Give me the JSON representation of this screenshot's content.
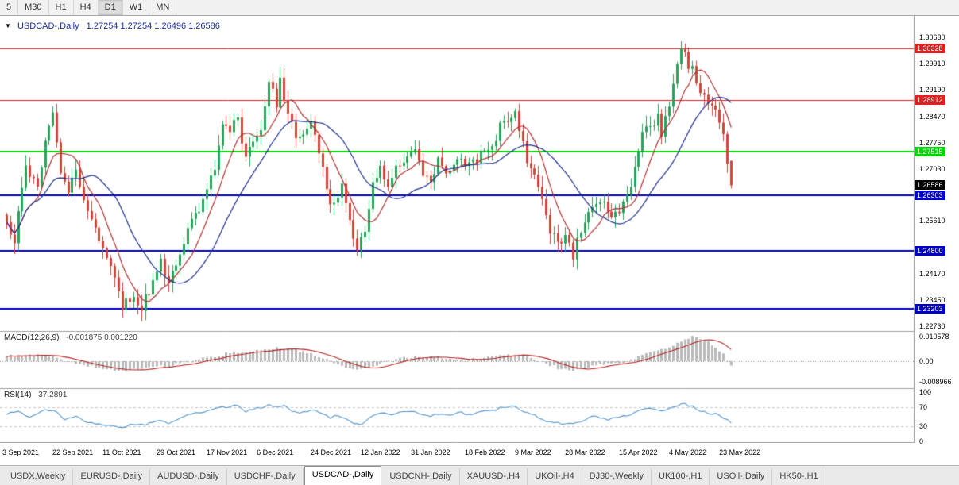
{
  "toolbar": {
    "timeframes": [
      "5",
      "M30",
      "H1",
      "H4",
      "D1",
      "W1",
      "MN"
    ],
    "active_timeframe": "D1"
  },
  "chart_header": {
    "symbol": "USDCAD-,Daily",
    "ohlc": "1.27254 1.27254 1.26496 1.26586"
  },
  "chart_data": {
    "type": "candlestick",
    "title": "USDCAD-,Daily",
    "ohlc_current": {
      "open": 1.27254,
      "high": 1.27254,
      "low": 1.26496,
      "close": 1.26586
    },
    "price_range": {
      "top": 1.3063,
      "bottom": 1.2273
    },
    "y_axis_ticks": [
      "1.30630",
      "1.29910",
      "1.29190",
      "1.28470",
      "1.27750",
      "1.27030",
      "1.25610",
      "1.24170",
      "1.23450",
      "1.22730"
    ],
    "h_lines": [
      {
        "price": 1.30328,
        "label": "1.30328",
        "color": "#e02020",
        "width": 1
      },
      {
        "price": 1.28912,
        "label": "1.28912",
        "color": "#e02020",
        "width": 1
      },
      {
        "price": 1.27515,
        "label": "1.27515",
        "color": "#00d400",
        "width": 2
      },
      {
        "price": 1.26303,
        "label": "1.26303",
        "color": "#0000c8",
        "width": 2
      },
      {
        "price": 1.248,
        "label": "1.24800",
        "color": "#0000c8",
        "width": 2
      },
      {
        "price": 1.23203,
        "label": "1.23203",
        "color": "#0000c8",
        "width": 2
      }
    ],
    "current_price": {
      "value": 1.26586,
      "label": "1.26586",
      "color": "#000000"
    },
    "num_candles": 189,
    "x_labels": [
      {
        "day": 0,
        "label": "3 Sep 2021"
      },
      {
        "day": 13,
        "label": "22 Sep 2021"
      },
      {
        "day": 26,
        "label": "11 Oct 2021"
      },
      {
        "day": 40,
        "label": "29 Oct 2021"
      },
      {
        "day": 53,
        "label": "17 Nov 2021"
      },
      {
        "day": 66,
        "label": "6 Dec 2021"
      },
      {
        "day": 80,
        "label": "24 Dec 2021"
      },
      {
        "day": 93,
        "label": "12 Jan 2022"
      },
      {
        "day": 106,
        "label": "31 Jan 2022"
      },
      {
        "day": 120,
        "label": "18 Feb 2022"
      },
      {
        "day": 133,
        "label": "9 Mar 2022"
      },
      {
        "day": 146,
        "label": "28 Mar 2022"
      },
      {
        "day": 160,
        "label": "15 Apr 2022"
      },
      {
        "day": 173,
        "label": "4 May 2022"
      },
      {
        "day": 186,
        "label": "23 May 2022"
      }
    ],
    "close_waypoints": [
      [
        0,
        1.2545
      ],
      [
        2,
        1.251
      ],
      [
        5,
        1.27
      ],
      [
        8,
        1.266
      ],
      [
        11,
        1.283
      ],
      [
        12,
        1.2845
      ],
      [
        14,
        1.27
      ],
      [
        16,
        1.265
      ],
      [
        18,
        1.269
      ],
      [
        21,
        1.26
      ],
      [
        24,
        1.252
      ],
      [
        27,
        1.245
      ],
      [
        30,
        1.233
      ],
      [
        33,
        1.236
      ],
      [
        35,
        1.232
      ],
      [
        38,
        1.24
      ],
      [
        40,
        1.245
      ],
      [
        42,
        1.24
      ],
      [
        45,
        1.248
      ],
      [
        48,
        1.256
      ],
      [
        51,
        1.262
      ],
      [
        54,
        1.27
      ],
      [
        56,
        1.282
      ],
      [
        58,
        1.28
      ],
      [
        60,
        1.2845
      ],
      [
        62,
        1.273
      ],
      [
        64,
        1.279
      ],
      [
        66,
        1.281
      ],
      [
        68,
        1.2937
      ],
      [
        70,
        1.288
      ],
      [
        71,
        1.295
      ],
      [
        73,
        1.285
      ],
      [
        75,
        1.28
      ],
      [
        77,
        1.279
      ],
      [
        79,
        1.283
      ],
      [
        81,
        1.275
      ],
      [
        83,
        1.264
      ],
      [
        85,
        1.26
      ],
      [
        87,
        1.266
      ],
      [
        89,
        1.256
      ],
      [
        91,
        1.248
      ],
      [
        93,
        1.2535
      ],
      [
        95,
        1.2666
      ],
      [
        97,
        1.27
      ],
      [
        99,
        1.266
      ],
      [
        101,
        1.271
      ],
      [
        103,
        1.2722
      ],
      [
        105,
        1.276
      ],
      [
        106,
        1.2744
      ],
      [
        108,
        1.269
      ],
      [
        110,
        1.267
      ],
      [
        112,
        1.272
      ],
      [
        114,
        1.268
      ],
      [
        116,
        1.271
      ],
      [
        118,
        1.2733
      ],
      [
        120,
        1.2711
      ],
      [
        122,
        1.273
      ],
      [
        124,
        1.275
      ],
      [
        126,
        1.2766
      ],
      [
        128,
        1.282
      ],
      [
        130,
        1.284
      ],
      [
        132,
        1.286
      ],
      [
        133,
        1.2818
      ],
      [
        135,
        1.2733
      ],
      [
        137,
        1.268
      ],
      [
        139,
        1.262
      ],
      [
        141,
        1.254
      ],
      [
        143,
        1.2494
      ],
      [
        145,
        1.252
      ],
      [
        147,
        1.247
      ],
      [
        149,
        1.253
      ],
      [
        151,
        1.258
      ],
      [
        153,
        1.2613
      ],
      [
        155,
        1.2602
      ],
      [
        157,
        1.256
      ],
      [
        159,
        1.259
      ],
      [
        161,
        1.262
      ],
      [
        163,
        1.27
      ],
      [
        165,
        1.279
      ],
      [
        167,
        1.282
      ],
      [
        169,
        1.284
      ],
      [
        170,
        1.2787
      ],
      [
        172,
        1.2885
      ],
      [
        174,
        1.299
      ],
      [
        175,
        1.3034
      ],
      [
        176,
        1.301
      ],
      [
        178,
        1.297
      ],
      [
        180,
        1.2916
      ],
      [
        182,
        1.2886
      ],
      [
        184,
        1.2864
      ],
      [
        186,
        1.2787
      ],
      [
        187,
        1.272
      ],
      [
        188,
        1.26586
      ]
    ],
    "colors": {
      "up": "#28a35c",
      "down": "#d0453c",
      "ma_fast": "#b03030",
      "ma_slow": "#1f2f8f",
      "macd_hist": "#b9b9b9",
      "macd_signal": "#b22222",
      "rsi": "#4f94cd"
    },
    "ma_fast_period": 8,
    "ma_slow_period": 20,
    "macd": {
      "title": "MACD(12,26,9)",
      "values": "-0.001875 0.001220",
      "axis": [
        "0.010578",
        "0.00",
        "-0.008966"
      ],
      "waypoints": [
        [
          0,
          0.002
        ],
        [
          5,
          0.003
        ],
        [
          10,
          0.0025
        ],
        [
          14,
          0.001
        ],
        [
          18,
          -0.001
        ],
        [
          24,
          -0.003
        ],
        [
          30,
          -0.0045
        ],
        [
          36,
          -0.003
        ],
        [
          42,
          -0.002
        ],
        [
          48,
          0.0
        ],
        [
          54,
          0.002
        ],
        [
          58,
          0.0035
        ],
        [
          62,
          0.004
        ],
        [
          66,
          0.0045
        ],
        [
          70,
          0.006
        ],
        [
          73,
          0.0055
        ],
        [
          77,
          0.004
        ],
        [
          81,
          0.002
        ],
        [
          85,
          -0.001
        ],
        [
          89,
          -0.003
        ],
        [
          92,
          -0.0035
        ],
        [
          95,
          -0.002
        ],
        [
          99,
          0.0
        ],
        [
          103,
          0.0015
        ],
        [
          107,
          0.002
        ],
        [
          111,
          0.0015
        ],
        [
          115,
          0.001
        ],
        [
          119,
          0.0005
        ],
        [
          123,
          0.001
        ],
        [
          127,
          0.002
        ],
        [
          131,
          0.003
        ],
        [
          134,
          0.0025
        ],
        [
          137,
          0.001
        ],
        [
          140,
          -0.001
        ],
        [
          143,
          -0.003
        ],
        [
          146,
          -0.004
        ],
        [
          149,
          -0.0035
        ],
        [
          152,
          -0.002
        ],
        [
          155,
          -0.0015
        ],
        [
          158,
          -0.001
        ],
        [
          161,
          0.0
        ],
        [
          164,
          0.002
        ],
        [
          167,
          0.004
        ],
        [
          170,
          0.005
        ],
        [
          173,
          0.007
        ],
        [
          176,
          0.009
        ],
        [
          178,
          0.0105
        ],
        [
          180,
          0.01
        ],
        [
          182,
          0.008
        ],
        [
          184,
          0.006
        ],
        [
          186,
          0.003
        ],
        [
          188,
          -0.001875
        ]
      ]
    },
    "rsi": {
      "title": "RSI(14)",
      "value": "37.2891",
      "axis": [
        "100",
        "70",
        "30",
        "0"
      ],
      "levels": [
        70,
        30
      ],
      "waypoints": [
        [
          0,
          55
        ],
        [
          3,
          60
        ],
        [
          6,
          50
        ],
        [
          9,
          62
        ],
        [
          12,
          65
        ],
        [
          15,
          45
        ],
        [
          18,
          50
        ],
        [
          21,
          40
        ],
        [
          24,
          35
        ],
        [
          27,
          30
        ],
        [
          30,
          28
        ],
        [
          33,
          35
        ],
        [
          36,
          32
        ],
        [
          39,
          42
        ],
        [
          42,
          38
        ],
        [
          45,
          48
        ],
        [
          48,
          55
        ],
        [
          51,
          58
        ],
        [
          54,
          65
        ],
        [
          57,
          70
        ],
        [
          60,
          72
        ],
        [
          62,
          60
        ],
        [
          64,
          65
        ],
        [
          66,
          68
        ],
        [
          68,
          75
        ],
        [
          70,
          70
        ],
        [
          72,
          72
        ],
        [
          74,
          62
        ],
        [
          76,
          58
        ],
        [
          78,
          62
        ],
        [
          80,
          65
        ],
        [
          82,
          55
        ],
        [
          84,
          48
        ],
        [
          86,
          52
        ],
        [
          88,
          45
        ],
        [
          90,
          38
        ],
        [
          92,
          35
        ],
        [
          94,
          48
        ],
        [
          96,
          55
        ],
        [
          98,
          58
        ],
        [
          100,
          54
        ],
        [
          102,
          58
        ],
        [
          104,
          60
        ],
        [
          106,
          62
        ],
        [
          108,
          54
        ],
        [
          110,
          52
        ],
        [
          112,
          56
        ],
        [
          114,
          52
        ],
        [
          116,
          55
        ],
        [
          118,
          58
        ],
        [
          120,
          55
        ],
        [
          122,
          57
        ],
        [
          124,
          60
        ],
        [
          126,
          62
        ],
        [
          128,
          68
        ],
        [
          130,
          70
        ],
        [
          132,
          72
        ],
        [
          134,
          62
        ],
        [
          136,
          55
        ],
        [
          138,
          48
        ],
        [
          140,
          42
        ],
        [
          142,
          38
        ],
        [
          144,
          35
        ],
        [
          146,
          38
        ],
        [
          148,
          36
        ],
        [
          150,
          45
        ],
        [
          152,
          50
        ],
        [
          154,
          48
        ],
        [
          156,
          44
        ],
        [
          158,
          47
        ],
        [
          160,
          50
        ],
        [
          162,
          56
        ],
        [
          164,
          62
        ],
        [
          166,
          66
        ],
        [
          168,
          68
        ],
        [
          170,
          62
        ],
        [
          172,
          68
        ],
        [
          174,
          74
        ],
        [
          176,
          76
        ],
        [
          178,
          70
        ],
        [
          180,
          62
        ],
        [
          182,
          58
        ],
        [
          184,
          56
        ],
        [
          186,
          48
        ],
        [
          188,
          37.2891
        ]
      ]
    }
  },
  "bottom_tabs": {
    "active_index": 4,
    "tabs": [
      {
        "label": "USDX,Weekly"
      },
      {
        "label": "EURUSD-,Daily"
      },
      {
        "label": "AUDUSD-,Daily"
      },
      {
        "label": "USDCHF-,Daily"
      },
      {
        "label": "USDCAD-,Daily"
      },
      {
        "label": "USDCNH-,Daily"
      },
      {
        "label": "XAUUSD-,H4"
      },
      {
        "label": "UKOil-,H4"
      },
      {
        "label": "DJ30-,Weekly"
      },
      {
        "label": "UK100-,H1"
      },
      {
        "label": "USOil-,Daily"
      },
      {
        "label": "HK50-,H1"
      }
    ]
  }
}
